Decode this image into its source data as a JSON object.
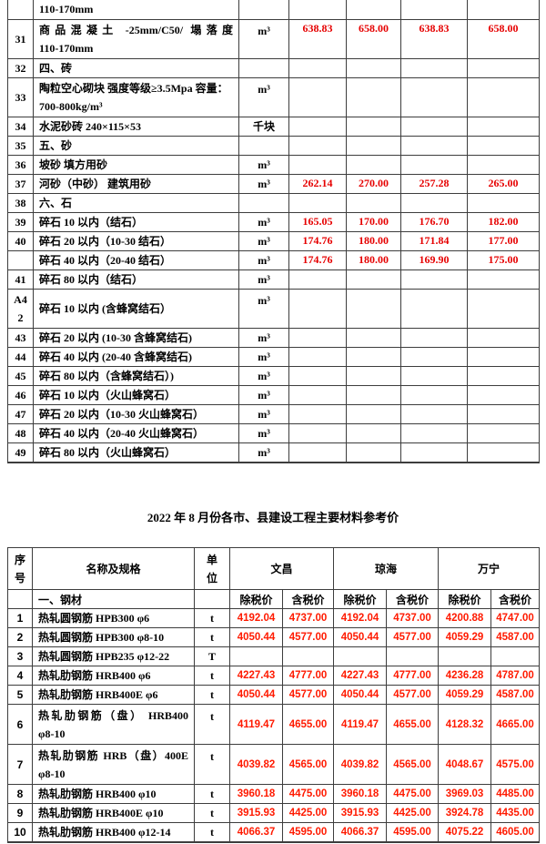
{
  "title": "2022 年 8 月份各市、县建设工程主要材料参考价",
  "colors": {
    "table1_value_color": "#e60000",
    "table2_value_color": "#ff1a00",
    "border_color": "#3d3d3d",
    "text_color": "#000000"
  },
  "table1": {
    "rows": [
      {
        "num": "",
        "name_lines": [
          "110-170mm"
        ],
        "unit": "",
        "values": [
          "",
          "",
          "",
          ""
        ],
        "partial": true
      },
      {
        "num": "31",
        "name_lines": [
          "商品混凝土 -25mm/C50/ 塌落度",
          "110-170mm"
        ],
        "justify": true,
        "unit": "m³",
        "values": [
          "638.83",
          "658.00",
          "638.83",
          "658.00"
        ]
      },
      {
        "num": "32",
        "name_lines": [
          "四、砖"
        ],
        "unit": "",
        "values": [
          "",
          "",
          "",
          ""
        ]
      },
      {
        "num": "33",
        "name_lines": [
          "陶粒空心砌块 强度等级≥3.5Mpa 容量：",
          "700-800kg/m³"
        ],
        "unit": "m³",
        "values": [
          "",
          "",
          "",
          ""
        ]
      },
      {
        "num": "34",
        "name_lines": [
          "水泥砂砖 240×115×53"
        ],
        "unit": "千块",
        "values": [
          "",
          "",
          "",
          ""
        ]
      },
      {
        "num": "35",
        "name_lines": [
          "五、砂"
        ],
        "unit": "",
        "values": [
          "",
          "",
          "",
          ""
        ]
      },
      {
        "num": "36",
        "name_lines": [
          "坡砂 填方用砂"
        ],
        "unit": "m³",
        "values": [
          "",
          "",
          "",
          ""
        ]
      },
      {
        "num": "37",
        "name_lines": [
          "河砂（中砂） 建筑用砂"
        ],
        "unit": "m³",
        "values": [
          "262.14",
          "270.00",
          "257.28",
          "265.00"
        ]
      },
      {
        "num": "38",
        "name_lines": [
          "六、石"
        ],
        "unit": "",
        "values": [
          "",
          "",
          "",
          ""
        ]
      },
      {
        "num": "39",
        "name_lines": [
          "碎石 10 以内（结石）"
        ],
        "unit": "m³",
        "values": [
          "165.05",
          "170.00",
          "176.70",
          "182.00"
        ]
      },
      {
        "num": "40",
        "name_lines": [
          "碎石 20 以内（10-30 结石）"
        ],
        "unit": "m³",
        "values": [
          "174.76",
          "180.00",
          "171.84",
          "177.00"
        ]
      },
      {
        "num": "",
        "name_lines": [
          "碎石 40 以内（20-40 结石）"
        ],
        "unit": "m³",
        "values": [
          "174.76",
          "180.00",
          "169.90",
          "175.00"
        ]
      },
      {
        "num": "41",
        "name_lines": [
          "碎石 80 以内（结石）"
        ],
        "unit": "m³",
        "values": [
          "",
          "",
          "",
          ""
        ]
      },
      {
        "num": "A42",
        "num_lines": [
          "A4",
          "2"
        ],
        "name_lines": [
          "碎石 10 以内 (含蜂窝结石）"
        ],
        "unit": "m³",
        "values": [
          "",
          "",
          "",
          ""
        ]
      },
      {
        "num": "43",
        "name_lines": [
          "碎石 20 以内 (10-30 含蜂窝结石)"
        ],
        "unit": "m³",
        "values": [
          "",
          "",
          "",
          ""
        ]
      },
      {
        "num": "44",
        "name_lines": [
          "碎石 40 以内 (20-40 含蜂窝结石)"
        ],
        "unit": "m³",
        "values": [
          "",
          "",
          "",
          ""
        ]
      },
      {
        "num": "45",
        "name_lines": [
          "碎石 80 以内（含蜂窝结石）)"
        ],
        "unit": "m³",
        "values": [
          "",
          "",
          "",
          ""
        ]
      },
      {
        "num": "46",
        "name_lines": [
          "碎石 10 以内（火山蜂窝石）"
        ],
        "unit": "m³",
        "values": [
          "",
          "",
          "",
          ""
        ]
      },
      {
        "num": "47",
        "name_lines": [
          "碎石 20 以内（10-30 火山蜂窝石）"
        ],
        "unit": "m³",
        "values": [
          "",
          "",
          "",
          ""
        ]
      },
      {
        "num": "48",
        "name_lines": [
          "碎石 40 以内（20-40 火山蜂窝石）"
        ],
        "unit": "m³",
        "values": [
          "",
          "",
          "",
          ""
        ]
      },
      {
        "num": "49",
        "name_lines": [
          "碎石 80 以内（火山蜂窝石）"
        ],
        "unit": "m³",
        "values": [
          "",
          "",
          "",
          ""
        ]
      }
    ]
  },
  "table2": {
    "header": {
      "seq1": "序",
      "seq2": "号",
      "name": "名称及规格",
      "unit1": "单",
      "unit2": "位",
      "city1": "文昌",
      "city2": "琼海",
      "city3": "万宁",
      "category": "一、钢材",
      "price_label_ex": "除税价",
      "price_label_in": "含税价"
    },
    "rows": [
      {
        "num": "1",
        "name_lines": [
          "热轧圆钢筋 HPB300 φ6"
        ],
        "unit": "t",
        "values": [
          "4192.04",
          "4737.00",
          "4192.04",
          "4737.00",
          "4200.88",
          "4747.00"
        ]
      },
      {
        "num": "2",
        "name_lines": [
          "热轧圆钢筋 HPB300 φ8-10"
        ],
        "unit": "t",
        "values": [
          "4050.44",
          "4577.00",
          "4050.44",
          "4577.00",
          "4059.29",
          "4587.00"
        ]
      },
      {
        "num": "3",
        "name_lines": [
          "热轧圆钢筋 HPB235 φ12-22"
        ],
        "unit": "T",
        "values": [
          "",
          "",
          "",
          "",
          "",
          ""
        ]
      },
      {
        "num": "4",
        "name_lines": [
          "热轧肋钢筋 HRB400 φ6"
        ],
        "unit": "t",
        "values": [
          "4227.43",
          "4777.00",
          "4227.43",
          "4777.00",
          "4236.28",
          "4787.00"
        ]
      },
      {
        "num": "5",
        "name_lines": [
          "热轧肋钢筋 HRB400E φ6"
        ],
        "unit": "t",
        "values": [
          "4050.44",
          "4577.00",
          "4050.44",
          "4577.00",
          "4059.29",
          "4587.00"
        ]
      },
      {
        "num": "6",
        "name_lines": [
          "热轧肋钢筋（盘） HRB400",
          "φ8-10"
        ],
        "justify": true,
        "unit": "t",
        "values": [
          "4119.47",
          "4655.00",
          "4119.47",
          "4655.00",
          "4128.32",
          "4665.00"
        ]
      },
      {
        "num": "7",
        "name_lines": [
          "热轧肋钢筋 HRB（盘）400E",
          "φ8-10"
        ],
        "justify": true,
        "unit": "t",
        "values": [
          "4039.82",
          "4565.00",
          "4039.82",
          "4565.00",
          "4048.67",
          "4575.00"
        ]
      },
      {
        "num": "8",
        "name_lines": [
          "热轧肋钢筋 HRB400 φ10"
        ],
        "unit": "t",
        "values": [
          "3960.18",
          "4475.00",
          "3960.18",
          "4475.00",
          "3969.03",
          "4485.00"
        ]
      },
      {
        "num": "9",
        "name_lines": [
          "热轧肋钢筋 HRB400E φ10"
        ],
        "unit": "t",
        "values": [
          "3915.93",
          "4425.00",
          "3915.93",
          "4425.00",
          "3924.78",
          "4435.00"
        ]
      },
      {
        "num": "10",
        "name_lines": [
          "热轧肋钢筋 HRB400 φ12-14"
        ],
        "unit": "t",
        "values": [
          "4066.37",
          "4595.00",
          "4066.37",
          "4595.00",
          "4075.22",
          "4605.00"
        ]
      }
    ]
  }
}
